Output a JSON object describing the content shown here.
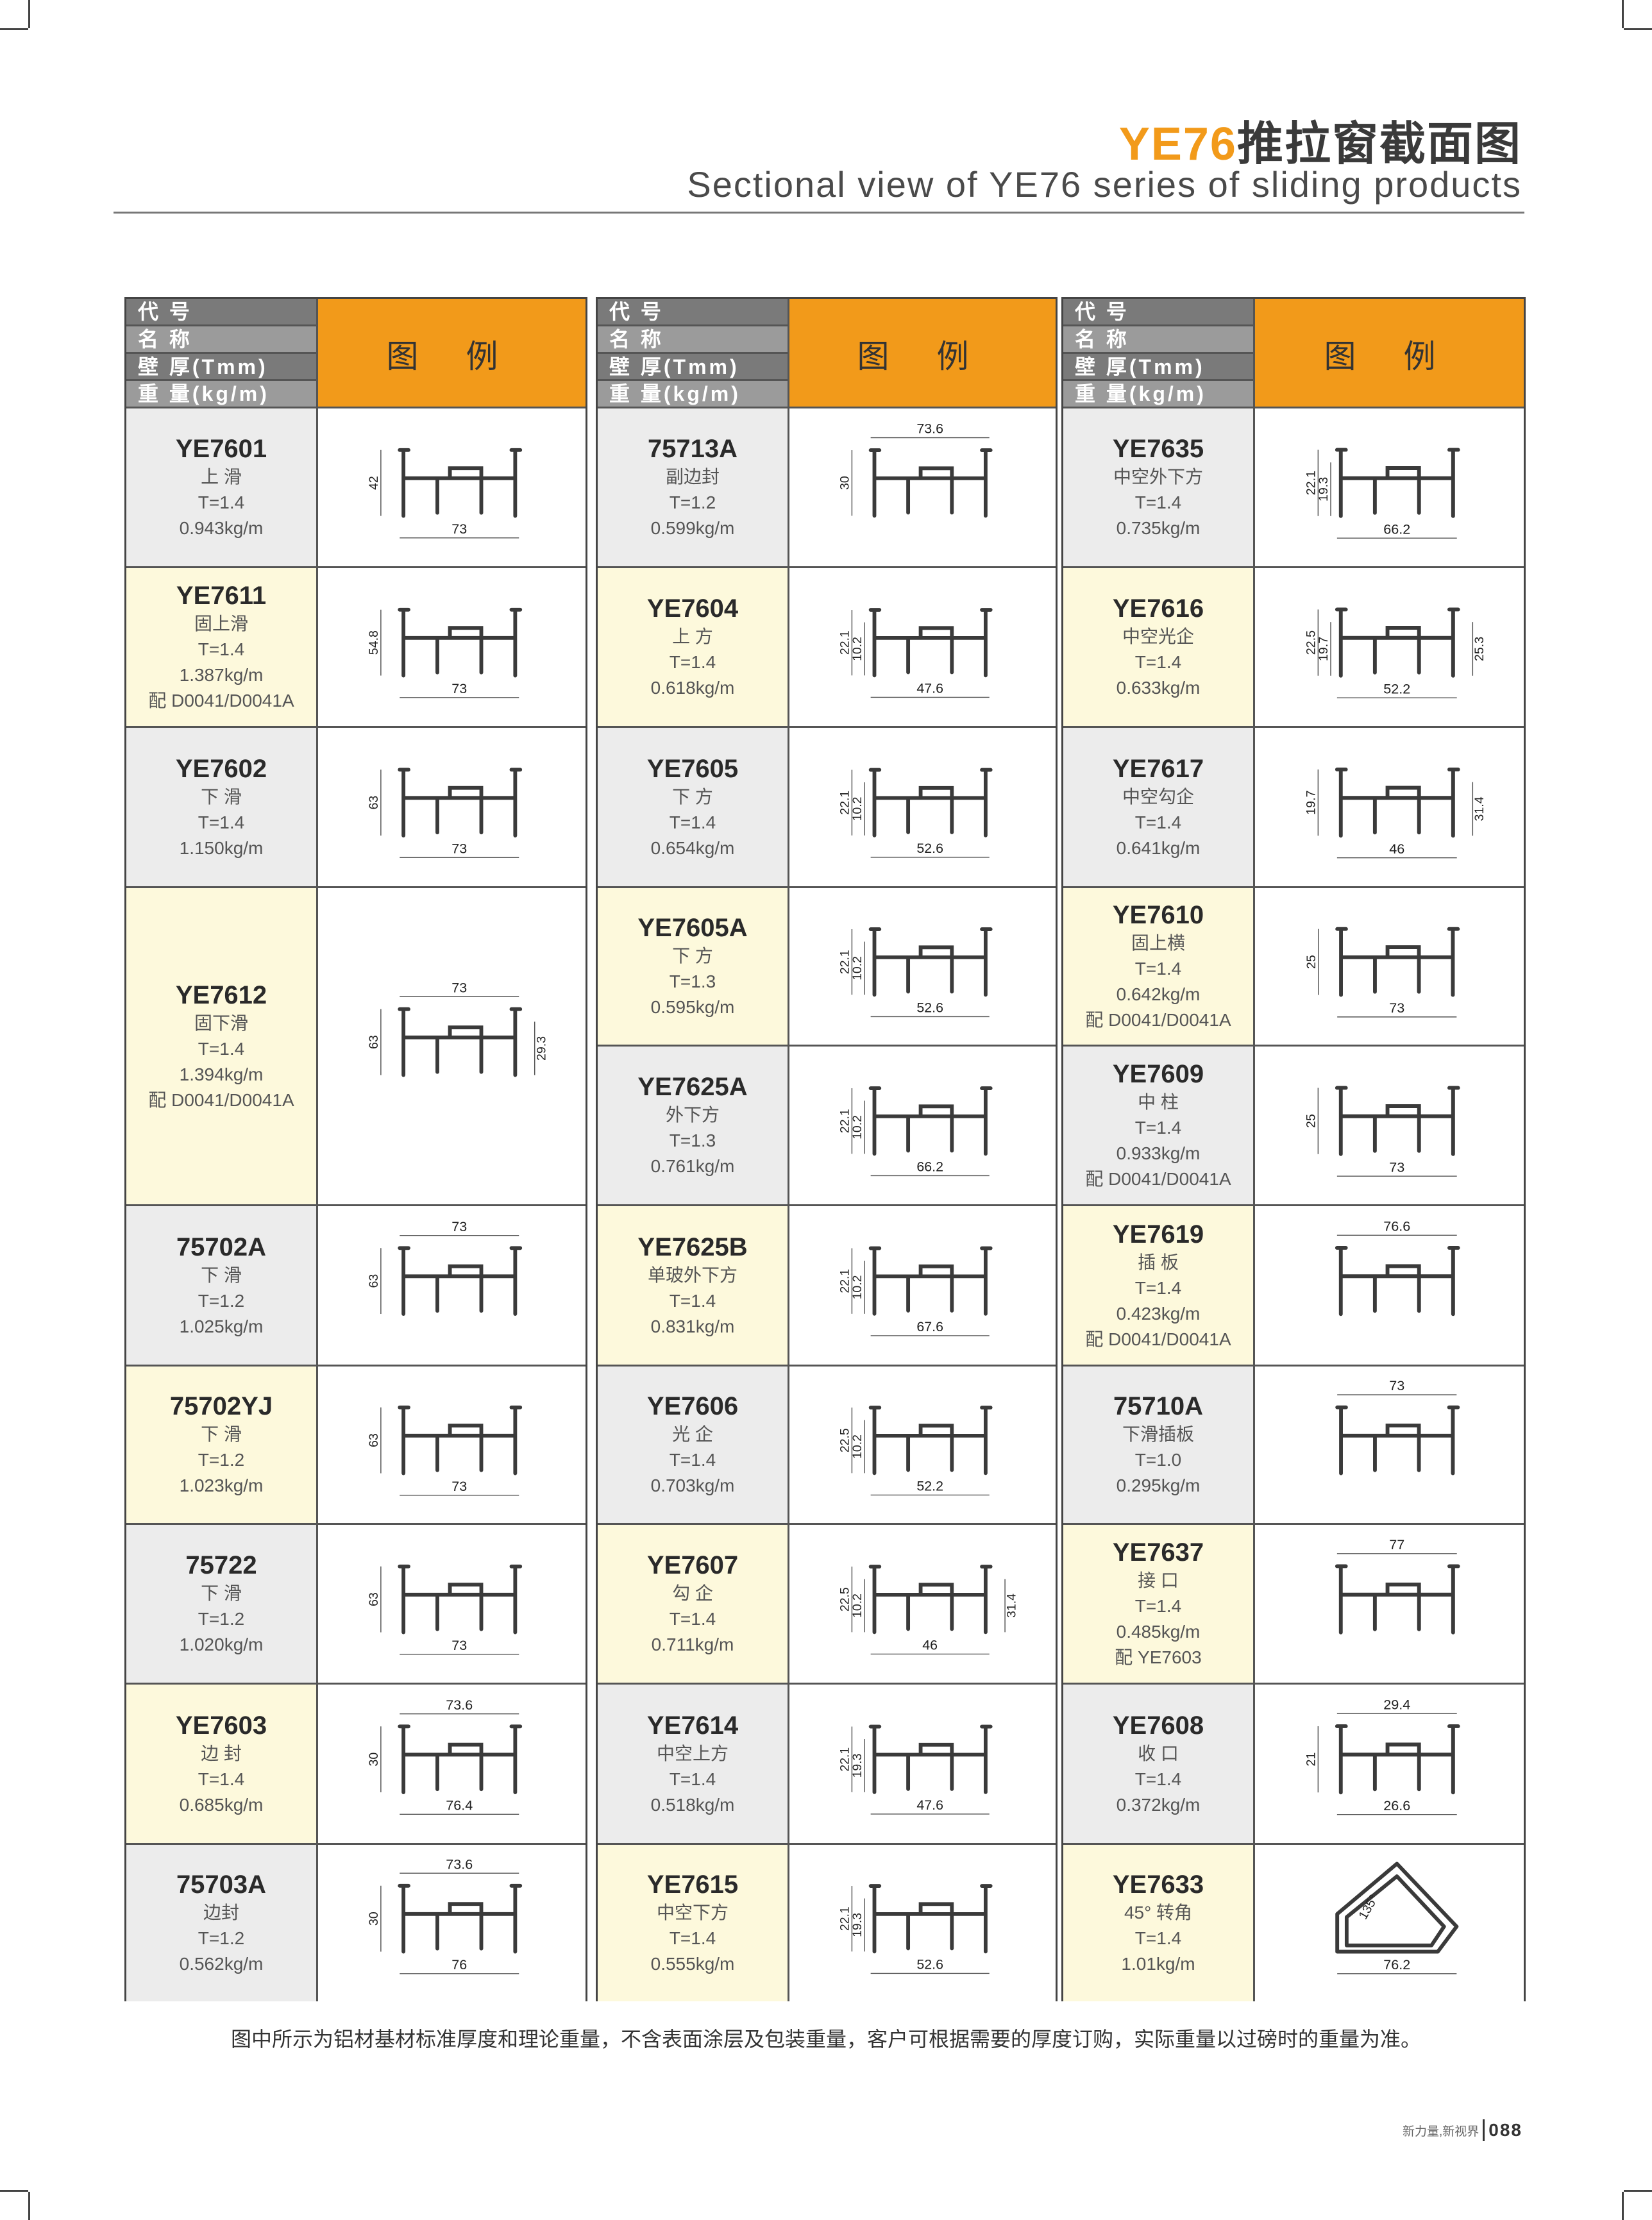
{
  "header": {
    "title_accent": "YE76",
    "title_rest": "推拉窗截面图",
    "subtitle": "Sectional view of YE76 series of sliding products"
  },
  "table_header": {
    "labels": [
      "代 号",
      "名 称",
      "壁 厚(Tmm)",
      "重 量(kg/m)"
    ],
    "legend": "图 例"
  },
  "colors": {
    "accent": "#f29a1a",
    "row_grey": "#ececec",
    "row_yellow": "#fdf9dc",
    "header_grey": "#7a7a7a"
  },
  "columns": [
    {
      "items": [
        {
          "code": "YE7601",
          "name": "上 滑",
          "t": "T=1.4",
          "weight": "0.943kg/m",
          "dims": {
            "heights": [
              "42"
            ],
            "bottom": "73"
          }
        },
        {
          "code": "YE7611",
          "name": "固上滑",
          "t": "T=1.4",
          "weight": "1.387kg/m",
          "extra": "配 D0041/D0041A",
          "dims": {
            "heights": [
              "54.8"
            ],
            "bottom": "73"
          }
        },
        {
          "code": "YE7602",
          "name": "下 滑",
          "t": "T=1.4",
          "weight": "1.150kg/m",
          "dims": {
            "heights": [
              "63"
            ],
            "bottom": "73"
          }
        },
        {
          "code": "YE7612",
          "name": "固下滑",
          "t": "T=1.4",
          "weight": "1.394kg/m",
          "extra": "配 D0041/D0041A",
          "span": 2,
          "dims": {
            "top": "73",
            "heights": [
              "63"
            ],
            "right": "29.3"
          }
        },
        {
          "code": "75702A",
          "name": "下 滑",
          "t": "T=1.2",
          "weight": "1.025kg/m",
          "dims": {
            "top": "73",
            "heights": [
              "63"
            ]
          }
        },
        {
          "code": "75702YJ",
          "name": "下 滑",
          "t": "T=1.2",
          "weight": "1.023kg/m",
          "dims": {
            "heights": [
              "63"
            ],
            "bottom": "73"
          }
        },
        {
          "code": "75722",
          "name": "下 滑",
          "t": "T=1.2",
          "weight": "1.020kg/m",
          "dims": {
            "heights": [
              "63"
            ],
            "bottom": "73"
          }
        },
        {
          "code": "YE7603",
          "name": "边 封",
          "t": "T=1.4",
          "weight": "0.685kg/m",
          "dims": {
            "top": "73.6",
            "heights": [
              "30"
            ],
            "bottom": "76.4"
          }
        },
        {
          "code": "75703A",
          "name": "边封",
          "t": "T=1.2",
          "weight": "0.562kg/m",
          "dims": {
            "top": "73.6",
            "heights": [
              "30"
            ],
            "bottom": "76"
          }
        }
      ]
    },
    {
      "items": [
        {
          "code": "75713A",
          "name": "副边封",
          "t": "T=1.2",
          "weight": "0.599kg/m",
          "dims": {
            "top": "73.6",
            "heights": [
              "30"
            ]
          }
        },
        {
          "code": "YE7604",
          "name": "上 方",
          "t": "T=1.4",
          "weight": "0.618kg/m",
          "dims": {
            "heights": [
              "22.1",
              "10.2"
            ],
            "bottom": "47.6"
          }
        },
        {
          "code": "YE7605",
          "name": "下 方",
          "t": "T=1.4",
          "weight": "0.654kg/m",
          "dims": {
            "heights": [
              "22.1",
              "10.2"
            ],
            "bottom": "52.6"
          }
        },
        {
          "code": "YE7605A",
          "name": "下 方",
          "t": "T=1.3",
          "weight": "0.595kg/m",
          "dims": {
            "heights": [
              "22.1",
              "10.2"
            ],
            "bottom": "52.6"
          }
        },
        {
          "code": "YE7625A",
          "name": "外下方",
          "t": "T=1.3",
          "weight": "0.761kg/m",
          "dims": {
            "heights": [
              "22.1",
              "10.2"
            ],
            "bottom": "66.2"
          }
        },
        {
          "code": "YE7625B",
          "name": "单玻外下方",
          "t": "T=1.4",
          "weight": "0.831kg/m",
          "dims": {
            "heights": [
              "22.1",
              "10.2"
            ],
            "bottom": "67.6"
          }
        },
        {
          "code": "YE7606",
          "name": "光 企",
          "t": "T=1.4",
          "weight": "0.703kg/m",
          "dims": {
            "heights": [
              "22.5",
              "10.2"
            ],
            "bottom": "52.2"
          }
        },
        {
          "code": "YE7607",
          "name": "勾 企",
          "t": "T=1.4",
          "weight": "0.711kg/m",
          "dims": {
            "heights": [
              "22.5",
              "10.2"
            ],
            "bottom": "46",
            "right": "31.4"
          }
        },
        {
          "code": "YE7614",
          "name": "中空上方",
          "t": "T=1.4",
          "weight": "0.518kg/m",
          "dims": {
            "heights": [
              "22.1",
              "19.3"
            ],
            "bottom": "47.6"
          }
        },
        {
          "code": "YE7615",
          "name": "中空下方",
          "t": "T=1.4",
          "weight": "0.555kg/m",
          "dims": {
            "heights": [
              "22.1",
              "19.3"
            ],
            "bottom": "52.6"
          }
        }
      ]
    },
    {
      "items": [
        {
          "code": "YE7635",
          "name": "中空外下方",
          "t": "T=1.4",
          "weight": "0.735kg/m",
          "dims": {
            "heights": [
              "22.1",
              "19.3"
            ],
            "bottom": "66.2"
          }
        },
        {
          "code": "YE7616",
          "name": "中空光企",
          "t": "T=1.4",
          "weight": "0.633kg/m",
          "dims": {
            "heights": [
              "22.5",
              "19.7"
            ],
            "bottom": "52.2",
            "right": "25.3"
          }
        },
        {
          "code": "YE7617",
          "name": "中空勾企",
          "t": "T=1.4",
          "weight": "0.641kg/m",
          "dims": {
            "heights": [
              "19.7"
            ],
            "bottom": "46",
            "right": "31.4"
          }
        },
        {
          "code": "YE7610",
          "name": "固上横",
          "t": "T=1.4",
          "weight": "0.642kg/m",
          "extra": "配 D0041/D0041A",
          "dims": {
            "heights": [
              "25"
            ],
            "bottom": "73"
          }
        },
        {
          "code": "YE7609",
          "name": "中 柱",
          "t": "T=1.4",
          "weight": "0.933kg/m",
          "extra": "配 D0041/D0041A",
          "dims": {
            "heights": [
              "25"
            ],
            "bottom": "73"
          }
        },
        {
          "code": "YE7619",
          "name": "插 板",
          "t": "T=1.4",
          "weight": "0.423kg/m",
          "extra": "配 D0041/D0041A",
          "dims": {
            "top": "76.6"
          }
        },
        {
          "code": "75710A",
          "name": "下滑插板",
          "t": "T=1.0",
          "weight": "0.295kg/m",
          "dims": {
            "top": "73"
          }
        },
        {
          "code": "YE7637",
          "name": "接 口",
          "t": "T=1.4",
          "weight": "0.485kg/m",
          "extra": "配 YE7603",
          "dims": {
            "top": "77"
          }
        },
        {
          "code": "YE7608",
          "name": "收 口",
          "t": "T=1.4",
          "weight": "0.372kg/m",
          "dims": {
            "top": "29.4",
            "heights": [
              "21"
            ],
            "bottom": "26.6"
          }
        },
        {
          "code": "YE7633",
          "name": "45°  转角",
          "t": "T=1.4",
          "weight": "1.01kg/m",
          "dims": {
            "angle": "135°",
            "bottom": "76.2"
          }
        }
      ]
    }
  ],
  "footnote": "图中所示为铝材基材标准厚度和理论重量，不含表面涂层及包装重量，客户可根据需要的厚度订购，实际重量以过磅时的重量为准。",
  "page_footer": {
    "slogan": "新力量,新视界",
    "page_number": "088"
  }
}
